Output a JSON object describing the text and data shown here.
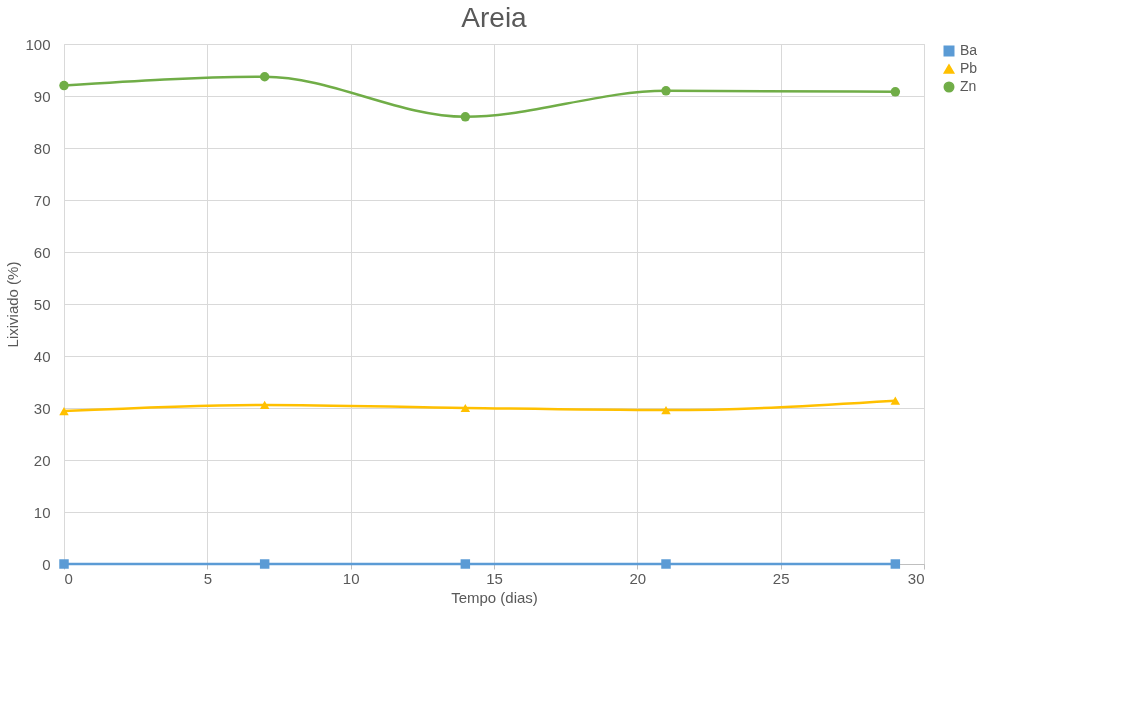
{
  "chart_data": {
    "type": "line",
    "title": "Areia",
    "xlabel": "Tempo (dias)",
    "ylabel": "Lixiviado (%)",
    "x": [
      0,
      7,
      14,
      21,
      29
    ],
    "series": [
      {
        "name": "Ba",
        "color": "#5b9bd5",
        "marker": "square",
        "values": [
          0,
          0,
          0,
          0,
          0
        ]
      },
      {
        "name": "Pb",
        "color": "#ffc000",
        "marker": "triangle",
        "values": [
          29.4,
          30.6,
          30.0,
          29.6,
          31.4
        ]
      },
      {
        "name": "Zn",
        "color": "#70ad47",
        "marker": "circle",
        "values": [
          92.0,
          93.7,
          86.0,
          91.0,
          90.8
        ]
      }
    ],
    "xlim": [
      0,
      30
    ],
    "xticks": [
      0,
      5,
      10,
      15,
      20,
      25,
      30
    ],
    "ylim": [
      0,
      100
    ],
    "yticks": [
      0,
      10,
      20,
      30,
      40,
      50,
      60,
      70,
      80,
      90,
      100
    ],
    "grid": true,
    "legend": "right",
    "line_style": "solid"
  }
}
